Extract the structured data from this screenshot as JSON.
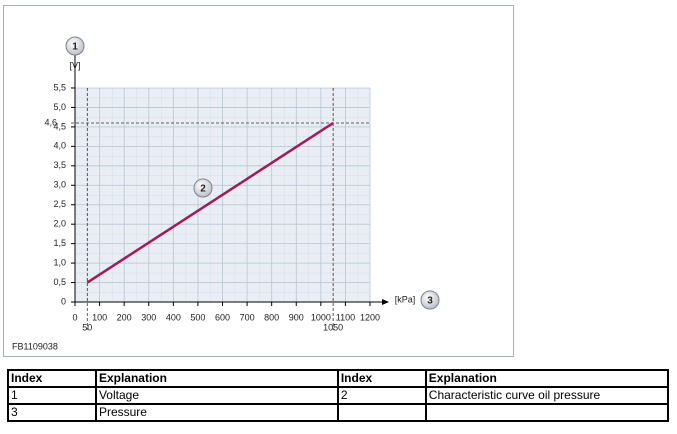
{
  "chart_data": {
    "type": "line",
    "x_unit": "[kPa]",
    "y_unit": "[V]",
    "x": [
      50,
      1050
    ],
    "series": [
      {
        "color": "#a3195b",
        "values": [
          0.5,
          4.6
        ]
      }
    ],
    "xlim": [
      0,
      1200
    ],
    "xticks": [
      0,
      100,
      200,
      300,
      400,
      500,
      600,
      700,
      800,
      900,
      1000,
      1100,
      1200
    ],
    "ylim": [
      0,
      5.5
    ],
    "yticks": [
      0,
      {
        "value": 0.5,
        "label": "0,5"
      },
      {
        "value": 1.0,
        "label": "1,0"
      },
      {
        "value": 1.5,
        "label": "1,5"
      },
      {
        "value": 2.0,
        "label": "2,0"
      },
      {
        "value": 2.5,
        "label": "2,5"
      },
      {
        "value": 3.0,
        "label": "3,0"
      },
      {
        "value": 3.5,
        "label": "3,5"
      },
      {
        "value": 4.0,
        "label": "4,0"
      },
      {
        "value": 4.5,
        "label": "4,5"
      },
      {
        "value": 5.0,
        "label": "5,0"
      },
      {
        "value": 5.5,
        "label": "5,5"
      }
    ],
    "reference_lines": [
      {
        "axis": "x",
        "value": 50,
        "label": "50"
      },
      {
        "axis": "x",
        "value": 1050,
        "label": "1050"
      },
      {
        "axis": "y",
        "value": 4.6,
        "label": "4,6"
      }
    ],
    "grid": true,
    "callouts": [
      "1",
      "2",
      "3"
    ]
  },
  "figure_id": "FB1109038",
  "table": {
    "header": [
      "Index",
      "Explanation",
      "Index",
      "Explanation"
    ],
    "rows": [
      [
        "1",
        "Voltage",
        "2",
        "Characteristic curve oil pressure"
      ],
      [
        "3",
        "Pressure"
      ]
    ]
  }
}
